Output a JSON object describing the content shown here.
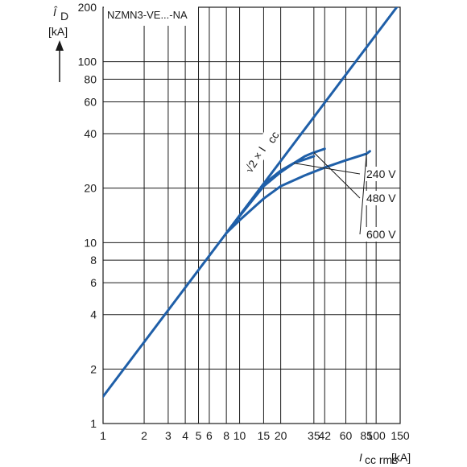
{
  "chart_data": {
    "type": "line",
    "title": "NZMN3-VE...-NA",
    "xlabel": {
      "symbol": "I",
      "subscript": "cc rms",
      "unit": "[kA]"
    },
    "ylabel": {
      "symbol": "Î",
      "subscript": "D",
      "unit": "[kA]"
    },
    "x_scale": "log",
    "y_scale": "log",
    "xlim": [
      1,
      150
    ],
    "ylim": [
      1,
      200
    ],
    "grid": true,
    "x_ticks": [
      1,
      2,
      3,
      4,
      5,
      6,
      8,
      10,
      15,
      20,
      35,
      42,
      60,
      85,
      100,
      150
    ],
    "x_tick_labels": [
      "1",
      "2",
      "3",
      "4",
      "5",
      "6",
      "8",
      "10",
      "15",
      "20",
      "35",
      "42",
      "60",
      "85",
      "100",
      "150"
    ],
    "y_ticks": [
      1,
      2,
      4,
      6,
      8,
      10,
      20,
      40,
      60,
      80,
      100,
      200
    ],
    "y_tick_labels": [
      "1",
      "2",
      "4",
      "6",
      "8",
      "10",
      "20",
      "40",
      "60",
      "80",
      "100",
      "200"
    ],
    "annotation_text": "√2 × I",
    "annotation_sub": "cc",
    "series": [
      {
        "name": "√2 × Icc",
        "x": [
          1,
          150
        ],
        "y": [
          1.41,
          212
        ]
      },
      {
        "name": "240 V",
        "x": [
          8,
          10,
          15,
          20,
          25,
          35
        ],
        "y": [
          11.3,
          14.1,
          21,
          25,
          27.5,
          30
        ]
      },
      {
        "name": "480 V",
        "x": [
          8,
          10,
          15,
          20,
          25,
          30,
          35,
          42
        ],
        "y": [
          11.3,
          14,
          20.5,
          24.5,
          27.5,
          30,
          31.5,
          33
        ]
      },
      {
        "name": "600 V",
        "x": [
          8,
          10,
          15,
          20,
          30,
          42,
          60,
          85,
          90
        ],
        "y": [
          11.3,
          13.3,
          17.5,
          20.5,
          23.5,
          26,
          28.5,
          31,
          32
        ]
      }
    ],
    "labels": [
      "240 V",
      "480 V",
      "600 V"
    ]
  }
}
